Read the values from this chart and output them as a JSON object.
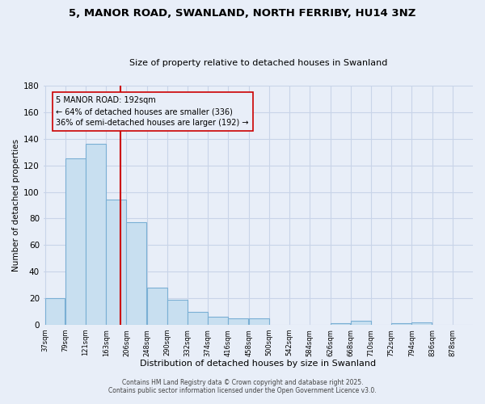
{
  "title": "5, MANOR ROAD, SWANLAND, NORTH FERRIBY, HU14 3NZ",
  "subtitle": "Size of property relative to detached houses in Swanland",
  "xlabel": "Distribution of detached houses by size in Swanland",
  "ylabel": "Number of detached properties",
  "bar_left_edges": [
    37,
    79,
    121,
    163,
    205,
    247,
    289,
    331,
    373,
    415,
    457,
    499,
    541,
    583,
    625,
    667,
    709,
    751,
    793,
    835
  ],
  "bar_heights": [
    20,
    125,
    136,
    94,
    77,
    28,
    19,
    10,
    6,
    5,
    5,
    0,
    0,
    0,
    1,
    3,
    0,
    1,
    2,
    0
  ],
  "bin_width": 42,
  "bar_color": "#c8dff0",
  "bar_edgecolor": "#7aafd4",
  "vline_x": 192,
  "vline_color": "#cc0000",
  "ylim": [
    0,
    180
  ],
  "yticks": [
    0,
    20,
    40,
    60,
    80,
    100,
    120,
    140,
    160,
    180
  ],
  "xtick_labels": [
    "37sqm",
    "79sqm",
    "121sqm",
    "163sqm",
    "206sqm",
    "248sqm",
    "290sqm",
    "332sqm",
    "374sqm",
    "416sqm",
    "458sqm",
    "500sqm",
    "542sqm",
    "584sqm",
    "626sqm",
    "668sqm",
    "710sqm",
    "752sqm",
    "794sqm",
    "836sqm",
    "878sqm"
  ],
  "xtick_positions": [
    37,
    79,
    121,
    163,
    205,
    247,
    289,
    331,
    373,
    415,
    457,
    499,
    541,
    583,
    625,
    667,
    709,
    751,
    793,
    835,
    877
  ],
  "annotation_lines": [
    "5 MANOR ROAD: 192sqm",
    "← 64% of detached houses are smaller (336)",
    "36% of semi-detached houses are larger (192) →"
  ],
  "footer_line1": "Contains HM Land Registry data © Crown copyright and database right 2025.",
  "footer_line2": "Contains public sector information licensed under the Open Government Licence v3.0.",
  "bg_color": "#e8eef8",
  "grid_color": "#c8d4e8",
  "plot_bg": "#e8eef8"
}
